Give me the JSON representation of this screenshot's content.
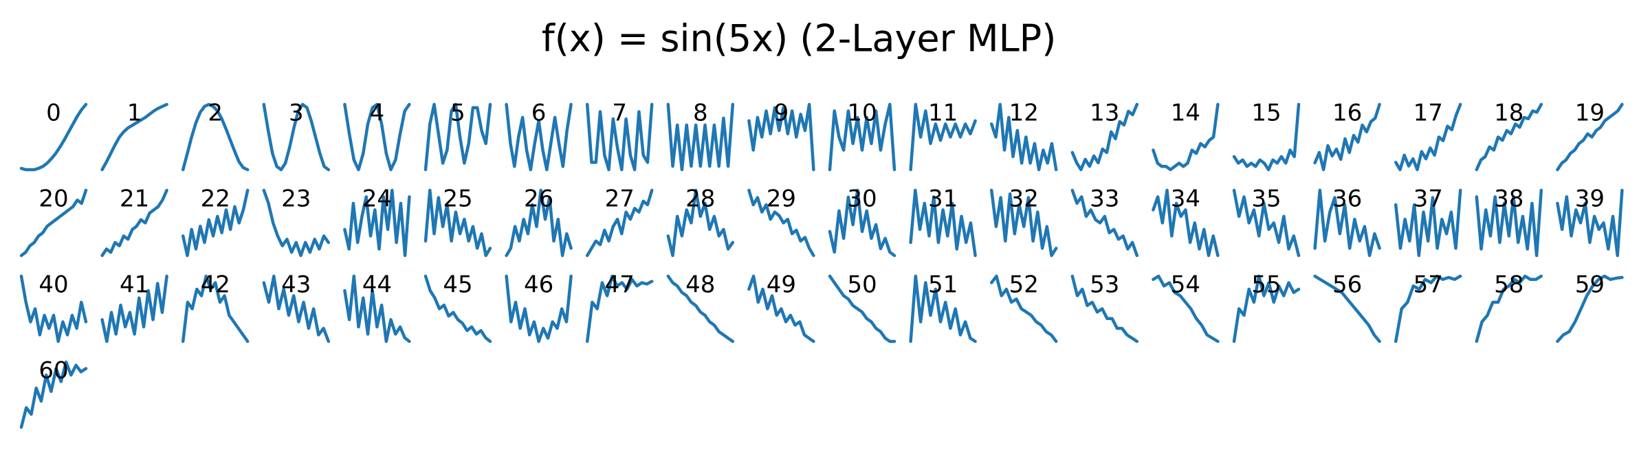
{
  "title": "f(x) = sin(5x) (2-Layer MLP)",
  "chart_data": [
    {
      "type": "line",
      "title": "0",
      "color": "#1f77b4",
      "values": [
        0.02,
        0,
        0,
        0,
        0.02,
        0.05,
        0.1,
        0.17,
        0.25,
        0.35,
        0.46,
        0.58,
        0.7,
        0.82,
        0.92,
        1
      ]
    },
    {
      "type": "line",
      "title": "1",
      "color": "#1f77b4",
      "values": [
        0,
        0.12,
        0.25,
        0.38,
        0.5,
        0.58,
        0.64,
        0.68,
        0.72,
        0.76,
        0.8,
        0.85,
        0.9,
        0.94,
        0.97,
        1
      ]
    },
    {
      "type": "line",
      "title": "2",
      "color": "#1f77b4",
      "values": [
        0,
        0.25,
        0.5,
        0.72,
        0.88,
        0.97,
        1,
        0.97,
        0.9,
        0.78,
        0.62,
        0.45,
        0.28,
        0.12,
        0.03,
        0
      ]
    },
    {
      "type": "line",
      "title": "3",
      "color": "#1f77b4",
      "values": [
        1,
        0.6,
        0.25,
        0.05,
        0,
        0.1,
        0.35,
        0.65,
        0.9,
        1,
        0.95,
        0.75,
        0.5,
        0.25,
        0.05,
        0
      ]
    },
    {
      "type": "line",
      "title": "4",
      "color": "#1f77b4",
      "values": [
        1,
        0.55,
        0.15,
        0,
        0.25,
        0.7,
        0.95,
        1,
        0.7,
        0.25,
        0,
        0.15,
        0.55,
        0.9,
        1
      ]
    },
    {
      "type": "line",
      "title": "5",
      "color": "#1f77b4",
      "values": [
        0,
        0.7,
        1,
        0.55,
        0.1,
        0.3,
        0.9,
        1,
        0.5,
        0.1,
        0.4,
        0.95,
        0.95,
        0.6,
        0.4,
        1
      ]
    },
    {
      "type": "line",
      "title": "6",
      "color": "#1f77b4",
      "values": [
        1,
        0.4,
        0.05,
        0.5,
        0.8,
        0.3,
        0,
        0.4,
        0.75,
        0.3,
        0,
        0.4,
        0.8,
        0.4,
        0.05,
        0.6,
        1
      ]
    },
    {
      "type": "line",
      "title": "7",
      "color": "#1f77b4",
      "values": [
        1,
        0.2,
        0.2,
        0.9,
        0.3,
        0.1,
        0.8,
        0.4,
        0.1,
        0.8,
        0.3,
        0.1,
        0.9,
        0.3,
        0.2,
        1
      ]
    },
    {
      "type": "line",
      "title": "8",
      "color": "#1f77b4",
      "values": [
        1,
        0.1,
        0.7,
        0.05,
        0.7,
        0.1,
        0.7,
        0.1,
        0.7,
        0.1,
        0.7,
        0.1,
        0.8,
        0.1,
        1
      ]
    },
    {
      "type": "line",
      "title": "9",
      "color": "#1f77b4",
      "values": [
        0.75,
        0.3,
        0.8,
        0.5,
        0.9,
        0.55,
        0.95,
        0.6,
        0.95,
        0.55,
        0.9,
        0.5,
        0.85,
        0.6,
        1,
        0
      ]
    },
    {
      "type": "line",
      "title": "10",
      "color": "#1f77b4",
      "values": [
        0,
        0.9,
        0.5,
        0.3,
        0.9,
        0.4,
        0.8,
        0.3,
        0.8,
        0.4,
        0.9,
        0.3,
        0.7,
        1,
        0
      ]
    },
    {
      "type": "line",
      "title": "11",
      "color": "#1f77b4",
      "values": [
        0,
        1,
        0.5,
        0.9,
        0.4,
        0.7,
        0.45,
        0.7,
        0.5,
        0.7,
        0.5,
        0.7,
        0.55,
        0.75
      ]
    },
    {
      "type": "line",
      "title": "12",
      "color": "#1f77b4",
      "values": [
        0.7,
        0.5,
        1,
        0.3,
        0.8,
        0.2,
        0.6,
        0.1,
        0.5,
        0.1,
        0.4,
        0,
        0.3,
        0.1,
        0.4,
        0
      ]
    },
    {
      "type": "line",
      "title": "13",
      "color": "#1f77b4",
      "values": [
        0.3,
        0.15,
        0.05,
        0.2,
        0.1,
        0.25,
        0.15,
        0.35,
        0.3,
        0.6,
        0.5,
        0.75,
        0.7,
        0.9,
        0.85,
        1
      ]
    },
    {
      "type": "line",
      "title": "14",
      "color": "#1f77b4",
      "values": [
        0.3,
        0.1,
        0.05,
        0.05,
        0,
        0.05,
        0.1,
        0.05,
        0.1,
        0.3,
        0.25,
        0.4,
        0.35,
        0.45,
        0.5,
        1
      ]
    },
    {
      "type": "line",
      "title": "15",
      "color": "#1f77b4",
      "values": [
        0.2,
        0.1,
        0.15,
        0.05,
        0.1,
        0.05,
        0.15,
        0.1,
        0,
        0.15,
        0.1,
        0.2,
        0.1,
        0.3,
        0.2,
        1
      ]
    },
    {
      "type": "line",
      "title": "16",
      "color": "#1f77b4",
      "values": [
        0.15,
        0.3,
        0.05,
        0.4,
        0.25,
        0.35,
        0.2,
        0.5,
        0.3,
        0.55,
        0.45,
        0.7,
        0.6,
        0.75,
        0.8,
        1
      ]
    },
    {
      "type": "line",
      "title": "17",
      "color": "#1f77b4",
      "values": [
        0.2,
        0.1,
        0.3,
        0.15,
        0.25,
        0.1,
        0.35,
        0.25,
        0.4,
        0.3,
        0.55,
        0.5,
        0.7,
        0.65,
        0.85,
        1
      ]
    },
    {
      "type": "line",
      "title": "18",
      "color": "#1f77b4",
      "values": [
        0,
        0.15,
        0.2,
        0.35,
        0.3,
        0.5,
        0.45,
        0.6,
        0.55,
        0.7,
        0.65,
        0.8,
        0.78,
        0.9,
        0.88,
        1
      ]
    },
    {
      "type": "line",
      "title": "19",
      "color": "#1f77b4",
      "values": [
        0,
        0.1,
        0.15,
        0.25,
        0.3,
        0.4,
        0.45,
        0.55,
        0.5,
        0.6,
        0.65,
        0.75,
        0.8,
        0.85,
        0.9,
        1
      ]
    },
    {
      "type": "line",
      "title": "20",
      "color": "#1f77b4",
      "values": [
        0,
        0.05,
        0.15,
        0.2,
        0.3,
        0.35,
        0.45,
        0.5,
        0.55,
        0.6,
        0.65,
        0.7,
        0.75,
        0.85,
        0.8,
        1
      ]
    },
    {
      "type": "line",
      "title": "21",
      "color": "#1f77b4",
      "values": [
        0,
        0.1,
        0.05,
        0.2,
        0.15,
        0.3,
        0.25,
        0.4,
        0.45,
        0.55,
        0.5,
        0.65,
        0.7,
        0.75,
        0.85,
        1
      ]
    },
    {
      "type": "line",
      "title": "22",
      "color": "#1f77b4",
      "values": [
        0.3,
        0,
        0.4,
        0.1,
        0.45,
        0.2,
        0.55,
        0.3,
        0.6,
        0.35,
        0.7,
        0.4,
        0.75,
        0.5,
        0.7,
        1
      ]
    },
    {
      "type": "line",
      "title": "23",
      "color": "#1f77b4",
      "values": [
        1,
        0.8,
        0.5,
        0.3,
        0.15,
        0.25,
        0.05,
        0.2,
        0,
        0.2,
        0.05,
        0.25,
        0.1,
        0.3,
        0.2
      ]
    },
    {
      "type": "line",
      "title": "24",
      "color": "#1f77b4",
      "values": [
        0.4,
        0.1,
        0.8,
        0.2,
        0.6,
        0.9,
        0.3,
        0.7,
        0.1,
        0.9,
        0.4,
        1,
        0.2,
        0.8,
        0,
        0.9
      ]
    },
    {
      "type": "line",
      "title": "25",
      "color": "#1f77b4",
      "values": [
        0.3,
        1,
        0.4,
        0.9,
        0.5,
        0.8,
        0.3,
        0.7,
        0.4,
        0.6,
        0.3,
        0.5,
        0.2,
        0.4,
        0.1,
        0.2
      ]
    },
    {
      "type": "line",
      "title": "26",
      "color": "#1f77b4",
      "values": [
        0.1,
        0.2,
        0.5,
        0.3,
        0.6,
        0.4,
        0.8,
        0.5,
        1,
        0.6,
        0.9,
        0.3,
        0.6,
        0.1,
        0.4,
        0.2
      ]
    },
    {
      "type": "line",
      "title": "27",
      "color": "#1f77b4",
      "values": [
        0.1,
        0.2,
        0.3,
        0.25,
        0.45,
        0.3,
        0.5,
        0.6,
        0.4,
        0.7,
        0.6,
        0.75,
        0.7,
        0.85,
        0.8,
        1
      ]
    },
    {
      "type": "line",
      "title": "28",
      "color": "#1f77b4",
      "values": [
        0.3,
        0,
        0.6,
        0.3,
        0.7,
        0.5,
        1,
        0.6,
        0.8,
        0.4,
        0.6,
        0.3,
        0.4,
        0.1,
        0.2
      ]
    },
    {
      "type": "line",
      "title": "29",
      "color": "#1f77b4",
      "values": [
        0.9,
        0.7,
        0.8,
        0.6,
        0.7,
        0.5,
        0.6,
        0.55,
        0.45,
        0.5,
        0.3,
        0.35,
        0.2,
        0.25,
        0.1,
        0
      ]
    },
    {
      "type": "line",
      "title": "30",
      "color": "#1f77b4",
      "values": [
        0.4,
        0.1,
        0.7,
        0.3,
        0.9,
        0.5,
        1,
        0.4,
        0.7,
        0.3,
        0.5,
        0.15,
        0.3,
        0.1,
        0.05
      ]
    },
    {
      "type": "line",
      "title": "31",
      "color": "#1f77b4",
      "values": [
        0.2,
        1,
        0.4,
        0.8,
        0.3,
        0.9,
        0.2,
        0.7,
        0.3,
        0.8,
        0.1,
        0.6,
        0.2,
        0.5,
        0
      ]
    },
    {
      "type": "line",
      "title": "32",
      "color": "#1f77b4",
      "values": [
        1,
        0.5,
        0.9,
        0.3,
        0.95,
        0.4,
        0.8,
        0.5,
        0.9,
        0.3,
        0.7,
        0.2,
        0.5,
        0.1,
        0.2
      ]
    },
    {
      "type": "line",
      "title": "33",
      "color": "#1f77b4",
      "values": [
        1,
        0.8,
        0.9,
        0.6,
        0.7,
        0.55,
        0.5,
        0.6,
        0.35,
        0.4,
        0.25,
        0.3,
        0.1,
        0.2,
        0
      ]
    },
    {
      "type": "line",
      "title": "34",
      "color": "#1f77b4",
      "values": [
        0.7,
        0.9,
        0.5,
        1,
        0.3,
        0.8,
        0.6,
        0.7,
        0.2,
        0.5,
        0.1,
        0.4,
        0,
        0.3,
        0
      ]
    },
    {
      "type": "line",
      "title": "35",
      "color": "#1f77b4",
      "values": [
        1,
        0.6,
        0.9,
        0.5,
        0.7,
        0.3,
        0.8,
        0.4,
        0.5,
        0.2,
        0.6,
        0.1,
        0.3,
        0
      ]
    },
    {
      "type": "line",
      "title": "36",
      "color": "#1f77b4",
      "values": [
        0.2,
        1,
        0.3,
        0.7,
        0.9,
        0.4,
        0.8,
        0.2,
        0.6,
        0.3,
        0.5,
        0.1,
        0.4,
        0.2
      ]
    },
    {
      "type": "line",
      "title": "37",
      "color": "#1f77b4",
      "values": [
        0.8,
        0.2,
        0.6,
        0.3,
        0.8,
        0.1,
        0.7,
        0.3,
        0.9,
        0.2,
        0.6,
        0.4,
        0.7,
        0.2,
        1
      ]
    },
    {
      "type": "line",
      "title": "38",
      "color": "#1f77b4",
      "values": [
        0.9,
        0.1,
        0.7,
        0.3,
        0.9,
        0.2,
        0.8,
        0.3,
        0.9,
        0.2,
        0.6,
        0.1,
        0.8,
        0,
        1
      ]
    },
    {
      "type": "line",
      "title": "39",
      "color": "#1f77b4",
      "values": [
        0.8,
        0.4,
        0.9,
        0.3,
        0.7,
        0.5,
        0.8,
        0.2,
        0.6,
        0.4,
        0.5,
        0.1,
        0.6,
        0,
        1
      ]
    },
    {
      "type": "line",
      "title": "40",
      "color": "#1f77b4",
      "values": [
        1,
        0.6,
        0.3,
        0.5,
        0.1,
        0.4,
        0.2,
        0.4,
        0,
        0.3,
        0.1,
        0.4,
        0.2,
        0.6,
        0.3
      ]
    },
    {
      "type": "line",
      "title": "41",
      "color": "#1f77b4",
      "values": [
        0.4,
        0.1,
        0.5,
        0.2,
        0.6,
        0.3,
        0.5,
        0.2,
        0.7,
        0.3,
        0.8,
        0.4,
        0.9,
        0.5,
        1
      ]
    },
    {
      "type": "line",
      "title": "42",
      "color": "#1f77b4",
      "values": [
        0,
        0.6,
        0.5,
        0.8,
        0.7,
        1,
        0.8,
        0.9,
        0.6,
        0.7,
        0.4,
        0.3,
        0.2,
        0.1,
        0
      ]
    },
    {
      "type": "line",
      "title": "43",
      "color": "#1f77b4",
      "values": [
        0.9,
        0.6,
        1,
        0.5,
        0.8,
        0.4,
        0.7,
        0.3,
        0.6,
        0.2,
        0.5,
        0.1,
        0.2,
        0
      ]
    },
    {
      "type": "line",
      "title": "44",
      "color": "#1f77b4",
      "values": [
        0.7,
        0.3,
        0.9,
        0.2,
        0.6,
        0.1,
        0.7,
        0.2,
        0.5,
        0,
        0.3,
        0.1,
        0.2,
        0.05,
        0
      ]
    },
    {
      "type": "line",
      "title": "45",
      "color": "#1f77b4",
      "values": [
        0.9,
        0.7,
        0.6,
        0.45,
        0.5,
        0.35,
        0.4,
        0.3,
        0.25,
        0.15,
        0.2,
        0.1,
        0.15,
        0.05,
        0
      ]
    },
    {
      "type": "line",
      "title": "46",
      "color": "#1f77b4",
      "values": [
        1,
        0.3,
        0.6,
        0.2,
        0.5,
        0.1,
        0.3,
        0,
        0.2,
        0.05,
        0.3,
        0.2,
        0.5,
        0.3,
        1
      ]
    },
    {
      "type": "line",
      "title": "47",
      "color": "#1f77b4",
      "values": [
        0,
        0.6,
        0.5,
        0.9,
        0.7,
        1,
        0.85,
        0.9,
        0.8,
        0.95,
        0.85,
        0.9,
        0.88,
        0.92
      ]
    },
    {
      "type": "line",
      "title": "48",
      "color": "#1f77b4",
      "values": [
        1,
        0.9,
        0.85,
        0.75,
        0.7,
        0.6,
        0.55,
        0.45,
        0.4,
        0.3,
        0.25,
        0.15,
        0.1,
        0.05,
        0
      ]
    },
    {
      "type": "line",
      "title": "49",
      "color": "#1f77b4",
      "values": [
        0.8,
        1,
        0.6,
        0.8,
        0.5,
        0.7,
        0.4,
        0.5,
        0.3,
        0.4,
        0.25,
        0.3,
        0.1,
        0.05,
        0
      ]
    },
    {
      "type": "line",
      "title": "50",
      "color": "#1f77b4",
      "values": [
        1,
        0.9,
        0.8,
        0.7,
        0.65,
        0.55,
        0.5,
        0.45,
        0.35,
        0.3,
        0.2,
        0.15,
        0.05,
        0,
        0
      ]
    },
    {
      "type": "line",
      "title": "51",
      "color": "#1f77b4",
      "values": [
        0,
        1,
        0.3,
        0.9,
        0.4,
        0.8,
        0.3,
        0.6,
        0.2,
        0.5,
        0.1,
        0.3,
        0.05,
        0
      ]
    },
    {
      "type": "line",
      "title": "52",
      "color": "#1f77b4",
      "values": [
        0.9,
        1,
        0.7,
        0.8,
        0.6,
        0.65,
        0.5,
        0.45,
        0.4,
        0.3,
        0.25,
        0.15,
        0.1,
        0
      ]
    },
    {
      "type": "line",
      "title": "53",
      "color": "#1f77b4",
      "values": [
        1,
        0.7,
        0.8,
        0.55,
        0.6,
        0.45,
        0.5,
        0.35,
        0.35,
        0.2,
        0.2,
        0.1,
        0.05,
        0
      ]
    },
    {
      "type": "line",
      "title": "54",
      "color": "#1f77b4",
      "values": [
        0.95,
        1,
        0.85,
        0.9,
        0.75,
        0.7,
        0.6,
        0.5,
        0.35,
        0.25,
        0.1,
        0.05,
        0
      ]
    },
    {
      "type": "line",
      "title": "55",
      "color": "#1f77b4",
      "values": [
        0,
        0.5,
        0.4,
        0.8,
        0.6,
        1,
        0.7,
        0.9,
        0.6,
        0.85,
        0.7,
        0.9,
        0.75,
        0.8
      ]
    },
    {
      "type": "line",
      "title": "56",
      "color": "#1f77b4",
      "values": [
        1,
        0.95,
        0.9,
        0.85,
        0.8,
        0.75,
        0.65,
        0.55,
        0.45,
        0.35,
        0.25,
        0.1,
        0
      ]
    },
    {
      "type": "line",
      "title": "57",
      "color": "#1f77b4",
      "values": [
        0,
        0.5,
        0.6,
        0.85,
        0.8,
        0.95,
        0.9,
        1,
        0.95,
        0.98,
        0.95,
        1
      ]
    },
    {
      "type": "line",
      "title": "58",
      "color": "#1f77b4",
      "values": [
        0,
        0.3,
        0.4,
        0.6,
        0.6,
        0.8,
        0.85,
        0.95,
        0.9,
        1,
        0.95,
        0.95,
        1
      ]
    },
    {
      "type": "line",
      "title": "59",
      "color": "#1f77b4",
      "values": [
        0,
        0.1,
        0.15,
        0.3,
        0.5,
        0.7,
        0.85,
        0.95,
        1,
        0.95,
        0.97,
        0.98
      ]
    },
    {
      "type": "line",
      "title": "60",
      "color": "#1f77b4",
      "values": [
        0,
        0.3,
        0.2,
        0.6,
        0.4,
        0.8,
        0.55,
        0.9,
        0.7,
        1,
        0.8,
        0.95,
        0.85,
        0.9
      ]
    }
  ]
}
